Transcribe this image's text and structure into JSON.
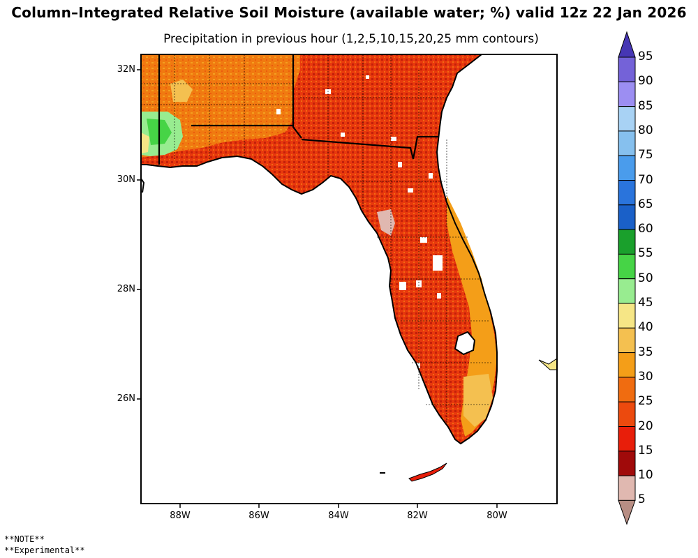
{
  "title": "Column–Integrated Relative Soil Moisture (available water; %) valid 12z 22 Jan 2026",
  "subtitle": "Precipitation in previous hour (1,2,5,10,15,20,25 mm contours)",
  "latitude_labels": [
    "32N",
    "30N",
    "28N",
    "26N"
  ],
  "longitude_labels": [
    "88W",
    "86W",
    "84W",
    "82W",
    "80W"
  ],
  "colorbar": {
    "labels": [
      "95",
      "90",
      "85",
      "80",
      "75",
      "70",
      "65",
      "60",
      "55",
      "50",
      "45",
      "40",
      "35",
      "30",
      "25",
      "20",
      "15",
      "10",
      "5"
    ],
    "colors": [
      "#4636b4",
      "#7462d8",
      "#9c8ef2",
      "#a8d2f4",
      "#86c0ee",
      "#4a9cec",
      "#2a74dc",
      "#1a60c8",
      "#1aa02c",
      "#46d446",
      "#98ec90",
      "#f6e686",
      "#f4c050",
      "#f49e18",
      "#f06c10",
      "#ec4a0e",
      "#e81e0a",
      "#a00a0a",
      "#e0b8b0",
      "#b88e84"
    ]
  },
  "notes": [
    "**NOTE**",
    "**Experimental**"
  ]
}
